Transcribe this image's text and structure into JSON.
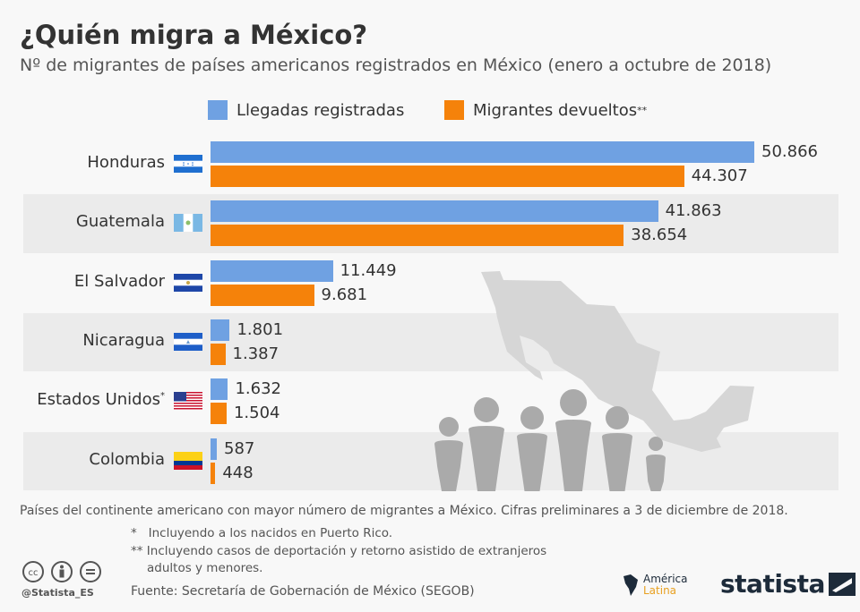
{
  "chart_data": {
    "type": "bar",
    "orientation": "horizontal",
    "title": "¿Quién migra a México?",
    "subtitle": "Nº de migrantes de países americanos registrados en México (enero a octubre de 2018)",
    "categories": [
      "Honduras",
      "Guatemala",
      "El Salvador",
      "Nicaragua",
      "Estados Unidos",
      "Colombia"
    ],
    "category_marks": [
      "",
      "",
      "",
      "",
      "*",
      ""
    ],
    "series": [
      {
        "name": "Llegadas registradas",
        "color": "#6fa1e2",
        "values": [
          50866,
          41863,
          11449,
          1801,
          1632,
          587
        ],
        "labels": [
          "50.866",
          "41.863",
          "11.449",
          "1.801",
          "1.632",
          "587"
        ]
      },
      {
        "name": "Migrantes devueltos",
        "name_mark": "**",
        "color": "#f5820a",
        "values": [
          44307,
          38654,
          9681,
          1387,
          1504,
          448
        ],
        "labels": [
          "44.307",
          "38.654",
          "9.681",
          "1.387",
          "1.504",
          "448"
        ]
      }
    ],
    "xlim": [
      0,
      60000
    ],
    "grid": false,
    "legend_position": "top",
    "flags": [
      "honduras-flag",
      "guatemala-flag",
      "el-salvador-flag",
      "nicaragua-flag",
      "usa-flag",
      "colombia-flag"
    ]
  },
  "footer": {
    "description": "Países del continente americano con mayor número de migrantes a México. Cifras preliminares a 3 de diciembre de 2018.",
    "note1_mark": "*",
    "note1": "Incluyendo a los nacidos en Puerto Rico.",
    "note2_mark": "**",
    "note2a": "Incluyendo casos de deportación y retorno asistido de extranjeros",
    "note2b": "adultos y menores.",
    "source": "Fuente: Secretaría de Gobernación de México (SEGOB)",
    "handle": "@Statista_ES",
    "logo_america": "América",
    "logo_latina": "Latina",
    "logo_statista": "statista"
  },
  "colors": {
    "row_alt": "#ebebeb",
    "background": "#f8f8f8",
    "figures": "#aaaaaa",
    "map": "#d6d6d6"
  }
}
